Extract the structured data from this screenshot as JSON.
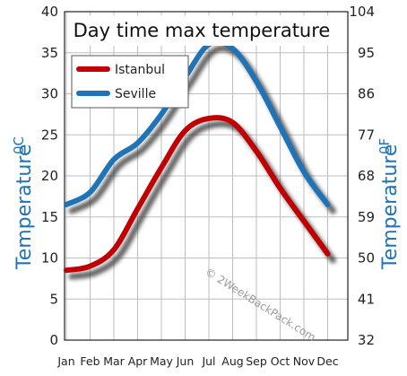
{
  "chart_data": {
    "type": "line",
    "title": "Day time max temperature",
    "ylabel_left": "Temperature",
    "ylabel_left_unit": "0C",
    "ylabel_right": "Temperature",
    "ylabel_right_unit": "0F",
    "categories": [
      "Jan",
      "Feb",
      "Mar",
      "Apr",
      "May",
      "Jun",
      "Jul",
      "Aug",
      "Sep",
      "Oct",
      "Nov",
      "Dec"
    ],
    "ylim_left": [
      0,
      40
    ],
    "yticks_left": [
      "0",
      "5",
      "10",
      "15",
      "20",
      "25",
      "30",
      "35",
      "40"
    ],
    "yticks_right": [
      "32",
      "41",
      "50",
      "59",
      "68",
      "77",
      "86",
      "95",
      "104"
    ],
    "grid": true,
    "legend_position": "top-left",
    "series": [
      {
        "name": "Istanbul",
        "color": "#c00000",
        "values": [
          8.5,
          9.0,
          11.0,
          16.0,
          21.0,
          25.5,
          27.0,
          26.5,
          23.0,
          18.5,
          14.5,
          10.5
        ]
      },
      {
        "name": "Seville",
        "color": "#1f73b7",
        "values": [
          16.5,
          18.0,
          22.0,
          24.0,
          27.5,
          32.0,
          36.0,
          35.5,
          31.5,
          26.0,
          20.5,
          16.5
        ]
      }
    ],
    "watermark": "© 2WeekBackPack.com"
  }
}
